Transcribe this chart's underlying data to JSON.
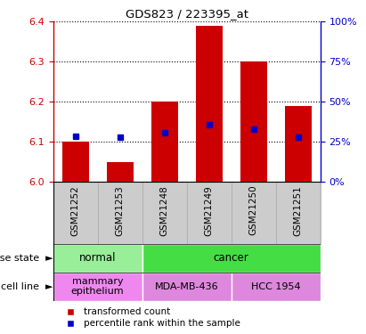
{
  "title": "GDS823 / 223395_at",
  "samples": [
    "GSM21252",
    "GSM21253",
    "GSM21248",
    "GSM21249",
    "GSM21250",
    "GSM21251"
  ],
  "red_values": [
    6.1,
    6.05,
    6.2,
    6.39,
    6.3,
    6.19
  ],
  "blue_values": [
    6.115,
    6.112,
    6.123,
    6.143,
    6.133,
    6.113
  ],
  "ylim_left": [
    6.0,
    6.4
  ],
  "ylim_right": [
    0,
    100
  ],
  "yticks_left": [
    6.0,
    6.1,
    6.2,
    6.3,
    6.4
  ],
  "yticks_right": [
    0,
    25,
    50,
    75,
    100
  ],
  "left_color": "#cc0000",
  "right_color": "#0000cc",
  "bar_base": 6.0,
  "disease_groups": [
    {
      "label": "normal",
      "cols": [
        0,
        1
      ],
      "color": "#99ee99"
    },
    {
      "label": "cancer",
      "cols": [
        2,
        3,
        4,
        5
      ],
      "color": "#44dd44"
    }
  ],
  "cell_line_groups": [
    {
      "label": "mammary\nepithelium",
      "cols": [
        0,
        1
      ],
      "color": "#ee88ee"
    },
    {
      "label": "MDA-MB-436",
      "cols": [
        2,
        3
      ],
      "color": "#dd88dd"
    },
    {
      "label": "HCC 1954",
      "cols": [
        4,
        5
      ],
      "color": "#dd88dd"
    }
  ],
  "legend_items": [
    {
      "color": "#cc0000",
      "label": "transformed count"
    },
    {
      "color": "#0000cc",
      "label": "percentile rank within the sample"
    }
  ],
  "left_label_color": "#cc0000",
  "right_label_color": "#0000cc",
  "disease_label": "disease state",
  "cell_line_label": "cell line",
  "sample_box_color": "#cccccc",
  "sample_box_edge": "#aaaaaa",
  "bar_width": 0.6,
  "blue_marker_size": 5
}
